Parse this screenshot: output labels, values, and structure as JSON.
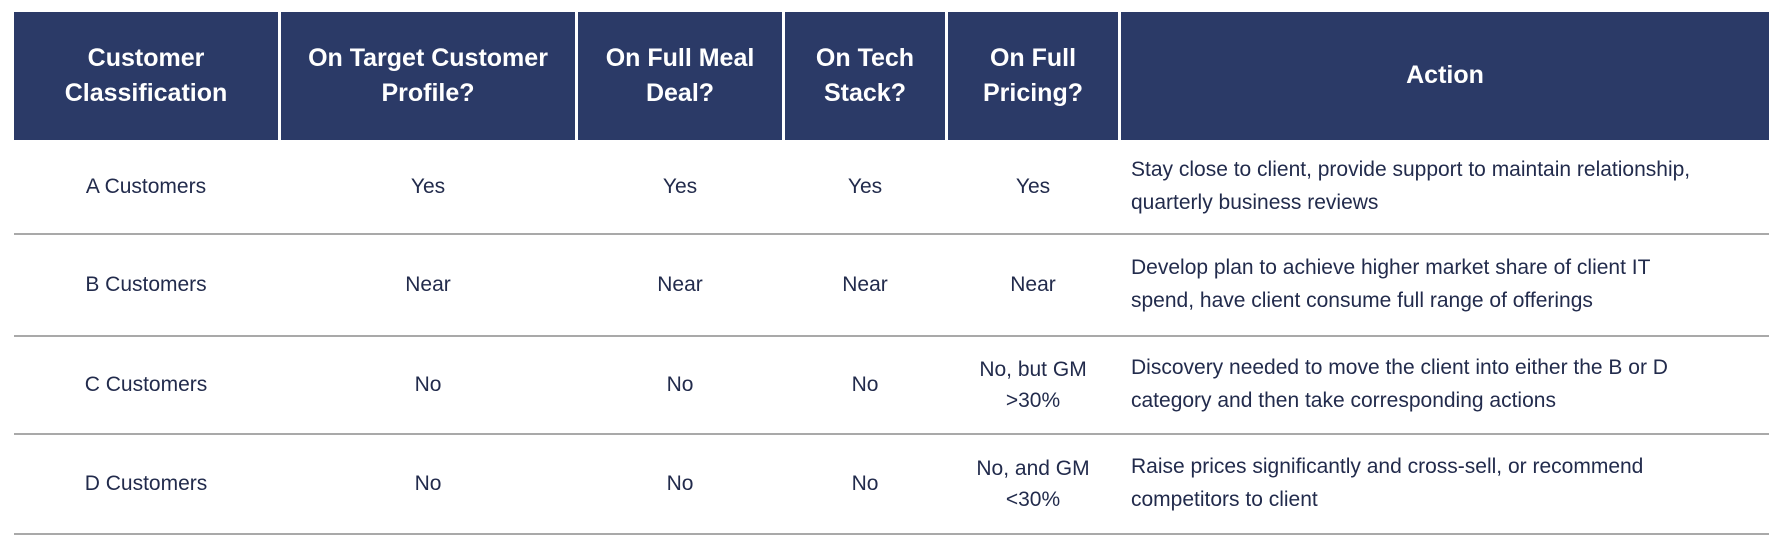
{
  "table": {
    "columns": [
      {
        "label": "Customer Classification"
      },
      {
        "label": "On Target Customer Profile?"
      },
      {
        "label": "On Full Meal Deal?"
      },
      {
        "label": "On Tech Stack?"
      },
      {
        "label": "On Full Pricing?"
      },
      {
        "label": "Action"
      }
    ],
    "rows": [
      {
        "classification": "A Customers",
        "target_profile": "Yes",
        "meal_deal": "Yes",
        "tech_stack": "Yes",
        "pricing": "Yes",
        "action": "Stay close to client, provide support to maintain relationship, quarterly business reviews"
      },
      {
        "classification": "B Customers",
        "target_profile": "Near",
        "meal_deal": "Near",
        "tech_stack": "Near",
        "pricing": "Near",
        "action": "Develop plan to achieve higher market share of client IT spend, have client consume full range of offerings"
      },
      {
        "classification": "C Customers",
        "target_profile": "No",
        "meal_deal": "No",
        "tech_stack": "No",
        "pricing": "No, but GM >30%",
        "action": "Discovery needed to move the client into either the B or D category and then take corresponding actions"
      },
      {
        "classification": "D Customers",
        "target_profile": "No",
        "meal_deal": "No",
        "tech_stack": "No",
        "pricing": "No, and GM <30%",
        "action": "Raise prices significantly and cross-sell, or recommend competitors to client"
      }
    ],
    "colors": {
      "header_bg": "#2B3A67",
      "header_text": "#FFFFFF",
      "body_text": "#222B4C",
      "row_divider": "#A9A9A9",
      "background": "#FFFFFF"
    }
  }
}
